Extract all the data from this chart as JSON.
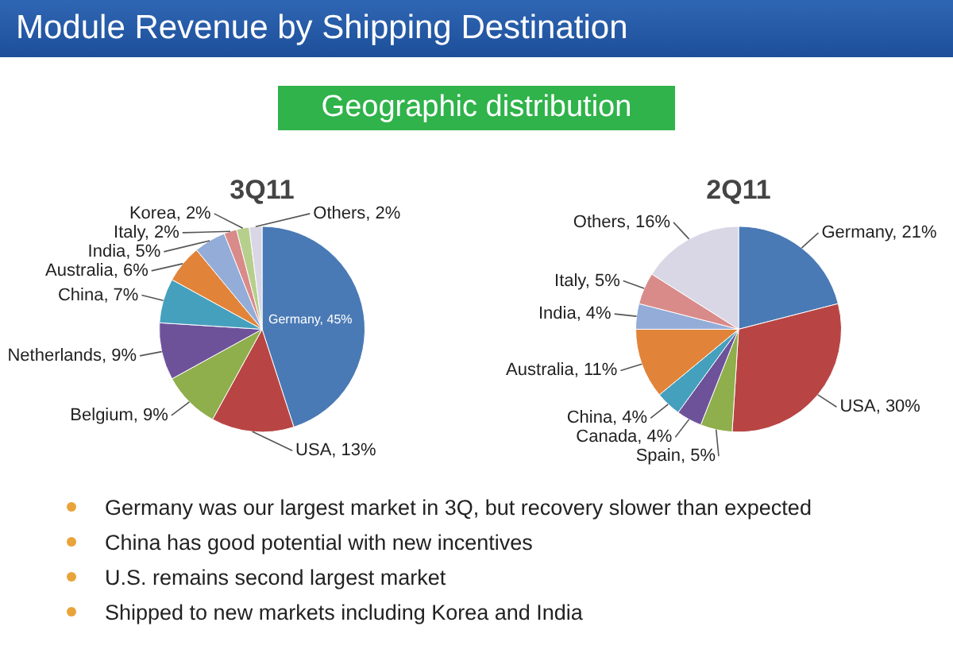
{
  "chart_data": [
    {
      "type": "other",
      "title": "Module Revenue by Shipping Destination",
      "subtitle": "Geographic distribution",
      "annotations": [
        "Germany was our largest market in 3Q, but recovery slower than expected",
        "China has good potential with new incentives",
        "U.S. remains second largest market",
        "Shipped to new markets including Korea and India"
      ]
    },
    {
      "type": "pie",
      "title": "3Q11",
      "categories": [
        "Germany",
        "USA",
        "Belgium",
        "Netherlands",
        "China",
        "Australia",
        "India",
        "Italy",
        "Korea",
        "Others"
      ],
      "values": [
        45,
        13,
        9,
        9,
        7,
        6,
        5,
        2,
        2,
        2
      ],
      "colors": [
        "#4a7ab5",
        "#b84544",
        "#8fae4c",
        "#6d529a",
        "#45a0be",
        "#e1843a",
        "#93acd8",
        "#d98b8a",
        "#b6cf8c",
        "#d9d6e6"
      ],
      "value_labels": [
        "45%",
        "13%",
        "9%",
        "9%",
        "7%",
        "6%",
        "5%",
        "2%",
        "2%",
        "2%"
      ],
      "legend": false
    },
    {
      "type": "pie",
      "title": "2Q11",
      "categories": [
        "Germany",
        "USA",
        "Spain",
        "Canada",
        "China",
        "Australia",
        "India",
        "Italy",
        "Others"
      ],
      "values": [
        21,
        30,
        5,
        4,
        4,
        11,
        4,
        5,
        16
      ],
      "colors": [
        "#4a7ab5",
        "#b84544",
        "#8fae4c",
        "#6d529a",
        "#45a0be",
        "#e1843a",
        "#93acd8",
        "#d98b8a",
        "#d9d6e6"
      ],
      "value_labels": [
        "21%",
        "30%",
        "5%",
        "4%",
        "4%",
        "11%",
        "4%",
        "5%",
        "16%"
      ],
      "legend": false
    }
  ]
}
